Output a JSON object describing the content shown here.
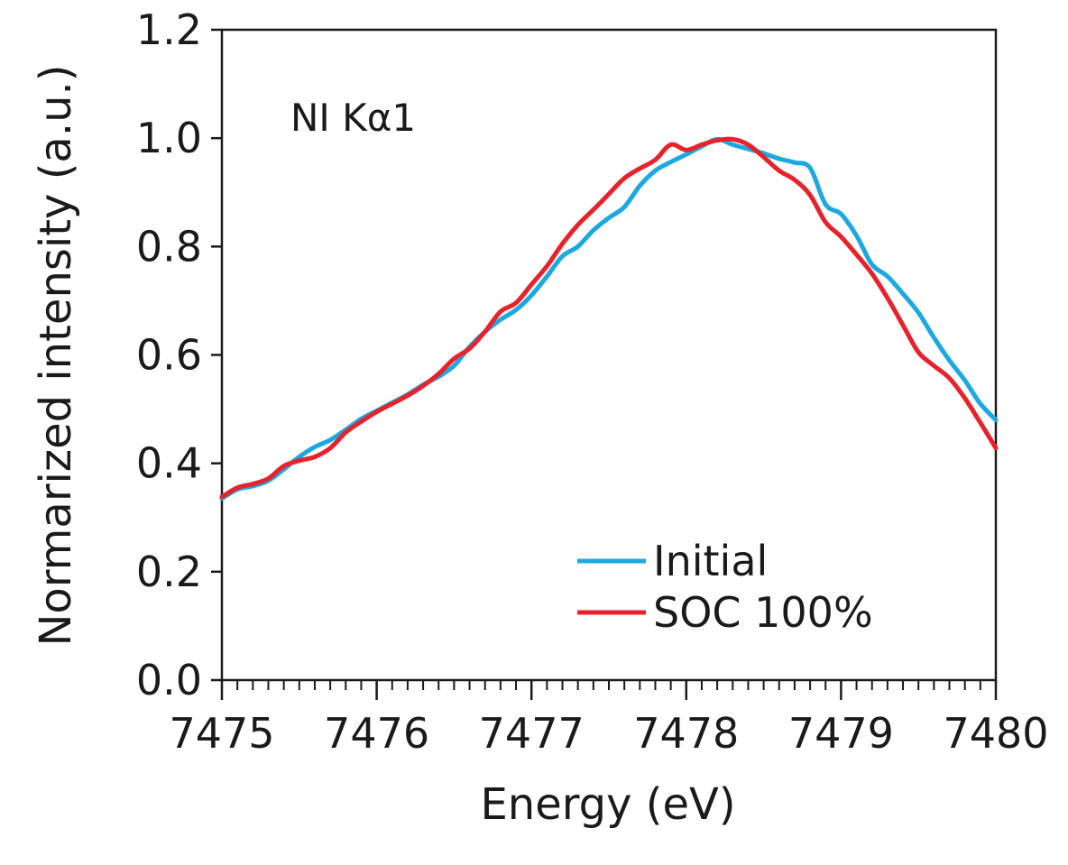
{
  "chart_data": {
    "type": "line",
    "title": "",
    "annotation": "NI Kα1",
    "xlabel": "Energy (eV)",
    "ylabel": "Normarized intensity (a.u.)",
    "xlim": [
      7475,
      7480
    ],
    "ylim": [
      0.0,
      1.2
    ],
    "xticks": [
      "7475",
      "7476",
      "7477",
      "7478",
      "7479",
      "7480"
    ],
    "yticks": [
      "0.0",
      "0.2",
      "0.4",
      "0.6",
      "0.8",
      "1.0",
      "1.2"
    ],
    "x_minor_step": 0.1,
    "grid": false,
    "legend_position": "bottom-right",
    "series": [
      {
        "name": "Initial",
        "color": "#1ca8e0",
        "x": [
          7475.0,
          7475.1,
          7475.2,
          7475.3,
          7475.4,
          7475.5,
          7475.6,
          7475.7,
          7475.8,
          7475.9,
          7476.0,
          7476.1,
          7476.2,
          7476.3,
          7476.4,
          7476.5,
          7476.6,
          7476.7,
          7476.8,
          7476.9,
          7477.0,
          7477.1,
          7477.2,
          7477.3,
          7477.4,
          7477.5,
          7477.6,
          7477.7,
          7477.8,
          7477.9,
          7478.0,
          7478.1,
          7478.2,
          7478.3,
          7478.4,
          7478.5,
          7478.6,
          7478.7,
          7478.8,
          7478.9,
          7479.0,
          7479.1,
          7479.2,
          7479.3,
          7479.4,
          7479.5,
          7479.6,
          7479.7,
          7479.8,
          7479.9,
          7480.0
        ],
        "values": [
          0.335,
          0.352,
          0.358,
          0.368,
          0.389,
          0.412,
          0.43,
          0.443,
          0.462,
          0.482,
          0.497,
          0.512,
          0.527,
          0.545,
          0.56,
          0.58,
          0.615,
          0.643,
          0.665,
          0.683,
          0.71,
          0.745,
          0.782,
          0.8,
          0.83,
          0.853,
          0.873,
          0.912,
          0.94,
          0.956,
          0.97,
          0.985,
          0.998,
          0.988,
          0.98,
          0.972,
          0.962,
          0.955,
          0.945,
          0.878,
          0.86,
          0.82,
          0.767,
          0.745,
          0.713,
          0.678,
          0.632,
          0.59,
          0.553,
          0.51,
          0.48
        ]
      },
      {
        "name": "SOC 100%",
        "color": "#e8212a",
        "x": [
          7475.0,
          7475.1,
          7475.2,
          7475.3,
          7475.4,
          7475.5,
          7475.6,
          7475.7,
          7475.8,
          7475.9,
          7476.0,
          7476.1,
          7476.2,
          7476.3,
          7476.4,
          7476.5,
          7476.6,
          7476.7,
          7476.8,
          7476.9,
          7477.0,
          7477.1,
          7477.2,
          7477.3,
          7477.4,
          7477.5,
          7477.6,
          7477.7,
          7477.8,
          7477.9,
          7478.0,
          7478.1,
          7478.2,
          7478.3,
          7478.4,
          7478.5,
          7478.6,
          7478.7,
          7478.8,
          7478.9,
          7479.0,
          7479.1,
          7479.2,
          7479.3,
          7479.4,
          7479.5,
          7479.6,
          7479.7,
          7479.8,
          7479.9,
          7480.0
        ],
        "values": [
          0.338,
          0.355,
          0.362,
          0.372,
          0.395,
          0.405,
          0.412,
          0.428,
          0.457,
          0.477,
          0.495,
          0.51,
          0.525,
          0.543,
          0.565,
          0.593,
          0.612,
          0.643,
          0.68,
          0.696,
          0.73,
          0.764,
          0.805,
          0.84,
          0.868,
          0.897,
          0.926,
          0.944,
          0.96,
          0.988,
          0.978,
          0.988,
          0.996,
          0.998,
          0.988,
          0.965,
          0.94,
          0.923,
          0.895,
          0.845,
          0.818,
          0.785,
          0.75,
          0.705,
          0.655,
          0.605,
          0.58,
          0.557,
          0.52,
          0.475,
          0.428
        ]
      }
    ]
  }
}
